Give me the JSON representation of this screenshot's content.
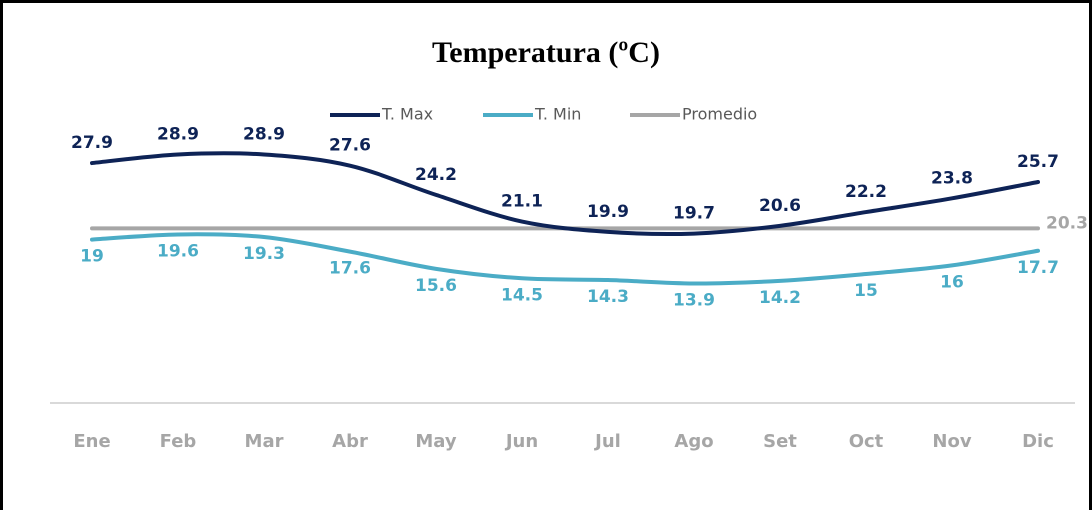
{
  "chart_data": {
    "type": "line",
    "title": "Temperatura (ºC)",
    "categories": [
      "Ene",
      "Feb",
      "Mar",
      "Abr",
      "May",
      "Jun",
      "Jul",
      "Ago",
      "Set",
      "Oct",
      "Nov",
      "Dic"
    ],
    "series": [
      {
        "name": "T. Max",
        "color": "#0e2356",
        "values": [
          27.9,
          28.9,
          28.9,
          27.6,
          24.2,
          21.1,
          19.9,
          19.7,
          20.6,
          22.2,
          23.8,
          25.7
        ]
      },
      {
        "name": "T. Min",
        "color": "#4bacc6",
        "values": [
          19,
          19.6,
          19.3,
          17.6,
          15.6,
          14.5,
          14.3,
          13.9,
          14.2,
          15,
          16,
          17.7
        ]
      },
      {
        "name": "Promedio",
        "color": "#a6a6a6",
        "values": [
          20.3,
          20.3,
          20.3,
          20.3,
          20.3,
          20.3,
          20.3,
          20.3,
          20.3,
          20.3,
          20.3,
          20.3
        ]
      }
    ],
    "ylim": [
      0,
      35
    ],
    "legend": "top"
  }
}
